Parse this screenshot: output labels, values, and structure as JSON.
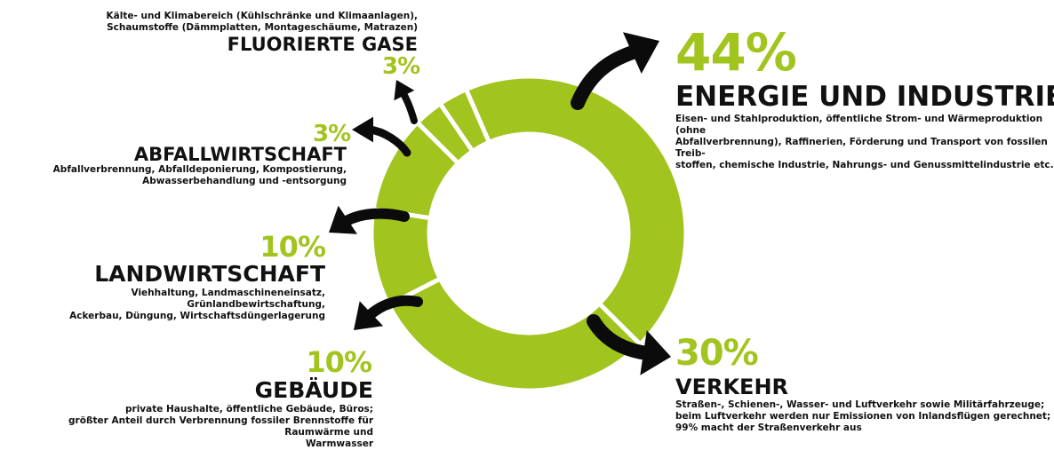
{
  "colors": {
    "ring": "#a2c41e",
    "separator": "#ffffff",
    "arrow": "#0b0b0b",
    "percent": "#a2c41e",
    "text": "#111111"
  },
  "chart_data": {
    "type": "pie",
    "variant": "donut",
    "start": "top, clockwise",
    "slices": [
      {
        "label": "ENERGIE UND INDUSTRIE",
        "value": 44,
        "percent_label": "44%",
        "description": "Eisen- und Stahlproduktion, öffentliche Strom- und Wärmeproduktion (ohne\nAbfallverbrennung), Raffinerien, Förderung und Transport von fossilen Treib-\nstoffen, chemische Industrie, Nahrungs- und Genussmittelindustrie etc."
      },
      {
        "label": "VERKEHR",
        "value": 30,
        "percent_label": "30%",
        "description": "Straßen-, Schienen-, Wasser- und Luftverkehr sowie Militärfahrzeuge;\nbeim Luftverkehr werden nur Emissionen von Inlandsflügen gerechnet;\n99% macht der Straßenverkehr aus"
      },
      {
        "label": "GEBÄUDE",
        "value": 10,
        "percent_label": "10%",
        "description": "private Haushalte, öffentliche Gebäude, Büros;\ngrößter Anteil durch Verbrennung fossiler Brennstoffe für Raumwärme und\nWarmwasser"
      },
      {
        "label": "LANDWIRTSCHAFT",
        "value": 10,
        "percent_label": "10%",
        "description": "Viehhaltung, Landmaschineneinsatz, Grünlandbewirtschaftung,\nAckerbau, Düngung, Wirtschaftsdüngerlagerung"
      },
      {
        "label": "ABFALLWIRTSCHAFT",
        "value": 3,
        "percent_label": "3%",
        "description": "Abfallverbrennung, Abfalldeponierung, Kompostierung,\nAbwasserbehandlung und -entsorgung"
      },
      {
        "label": "FLUORIERTE GASE",
        "value": 3,
        "percent_label": "3%",
        "description": "Kälte- und Klimabereich (Kühlschränke und Klimaanlagen),\nSchaumstoffe (Dämmplatten, Montageschäume, Matrazen)"
      }
    ]
  }
}
